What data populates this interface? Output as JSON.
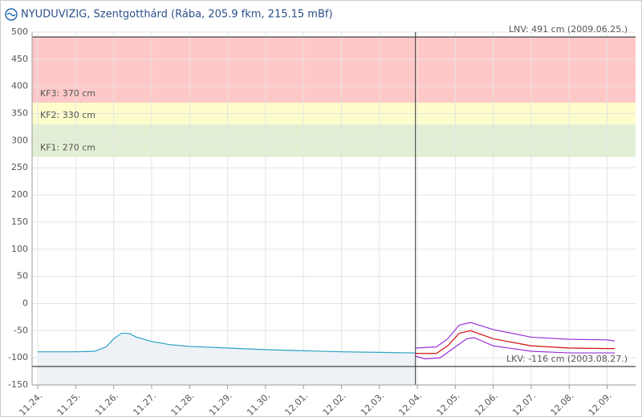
{
  "chart_data": {
    "type": "line",
    "title": "NYUDUVIZIG, Szentgotthárd (Rába, 205.9 fkm, 215.15 mBf)",
    "xlim": [
      -0.15,
      15.75
    ],
    "xticks": [
      {
        "value": 0,
        "label": "11.24."
      },
      {
        "value": 1,
        "label": "11.25."
      },
      {
        "value": 2,
        "label": "11.26."
      },
      {
        "value": 3,
        "label": "11.27."
      },
      {
        "value": 4,
        "label": "11.28."
      },
      {
        "value": 5,
        "label": "11.29."
      },
      {
        "value": 6,
        "label": "11.30."
      },
      {
        "value": 7,
        "label": "12.01."
      },
      {
        "value": 8,
        "label": "12.02."
      },
      {
        "value": 9,
        "label": "12.03."
      },
      {
        "value": 10,
        "label": "12.04."
      },
      {
        "value": 11,
        "label": "12.05."
      },
      {
        "value": 12,
        "label": "12.06."
      },
      {
        "value": 13,
        "label": "12.07."
      },
      {
        "value": 14,
        "label": "12.08."
      },
      {
        "value": 15,
        "label": "12.09."
      }
    ],
    "ylim": [
      -150,
      500
    ],
    "yticks": [
      -150,
      -100,
      -50,
      0,
      50,
      100,
      150,
      200,
      250,
      300,
      350,
      400,
      450,
      500
    ],
    "grid": true,
    "now": 9.95,
    "bands": [
      {
        "label": "KF1: 270 cm",
        "value": 270,
        "color": "#e2efd4"
      },
      {
        "label": "KF2: 330 cm",
        "value": 330,
        "color": "#fdfdcc"
      },
      {
        "label": "KF3: 370 cm",
        "value": 370,
        "color": "#ffc8c8"
      }
    ],
    "extremes": [
      {
        "label": "LNV: 491 cm (2009.06.25.)",
        "value": 491
      },
      {
        "label": "LKV: -116 cm (2003.08.27.)",
        "value": -116
      }
    ],
    "series": [
      {
        "color": "#2aa3c4",
        "fill": "#eef2f7",
        "x": [
          0,
          0.5,
          1,
          1.5,
          1.8,
          2.0,
          2.2,
          2.4,
          2.6,
          3.0,
          3.5,
          4,
          5,
          6,
          7,
          8,
          9,
          9.95
        ],
        "values": [
          -89,
          -89,
          -89,
          -88,
          -80,
          -65,
          -55,
          -55,
          -62,
          -70,
          -76,
          -79,
          -82,
          -85,
          -87,
          -89,
          -90,
          -91
        ]
      },
      {
        "color": "#d01010",
        "x": [
          9.95,
          10.5,
          10.8,
          11.1,
          11.4,
          12,
          13,
          14,
          15,
          15.2
        ],
        "values": [
          -92,
          -92,
          -78,
          -55,
          -50,
          -65,
          -78,
          -82,
          -83,
          -83
        ]
      },
      {
        "color": "#9b30d8",
        "x": [
          9.95,
          10.5,
          10.8,
          11.1,
          11.4,
          12,
          13,
          14,
          15,
          15.2
        ],
        "values": [
          -82,
          -80,
          -65,
          -40,
          -35,
          -48,
          -62,
          -66,
          -67,
          -69
        ]
      },
      {
        "color": "#9b30d8",
        "x": [
          9.95,
          10.2,
          10.6,
          11.0,
          11.3,
          11.5,
          12,
          13,
          14,
          15,
          15.2
        ],
        "values": [
          -97,
          -102,
          -100,
          -80,
          -65,
          -63,
          -78,
          -88,
          -91,
          -91,
          -91
        ]
      }
    ]
  }
}
